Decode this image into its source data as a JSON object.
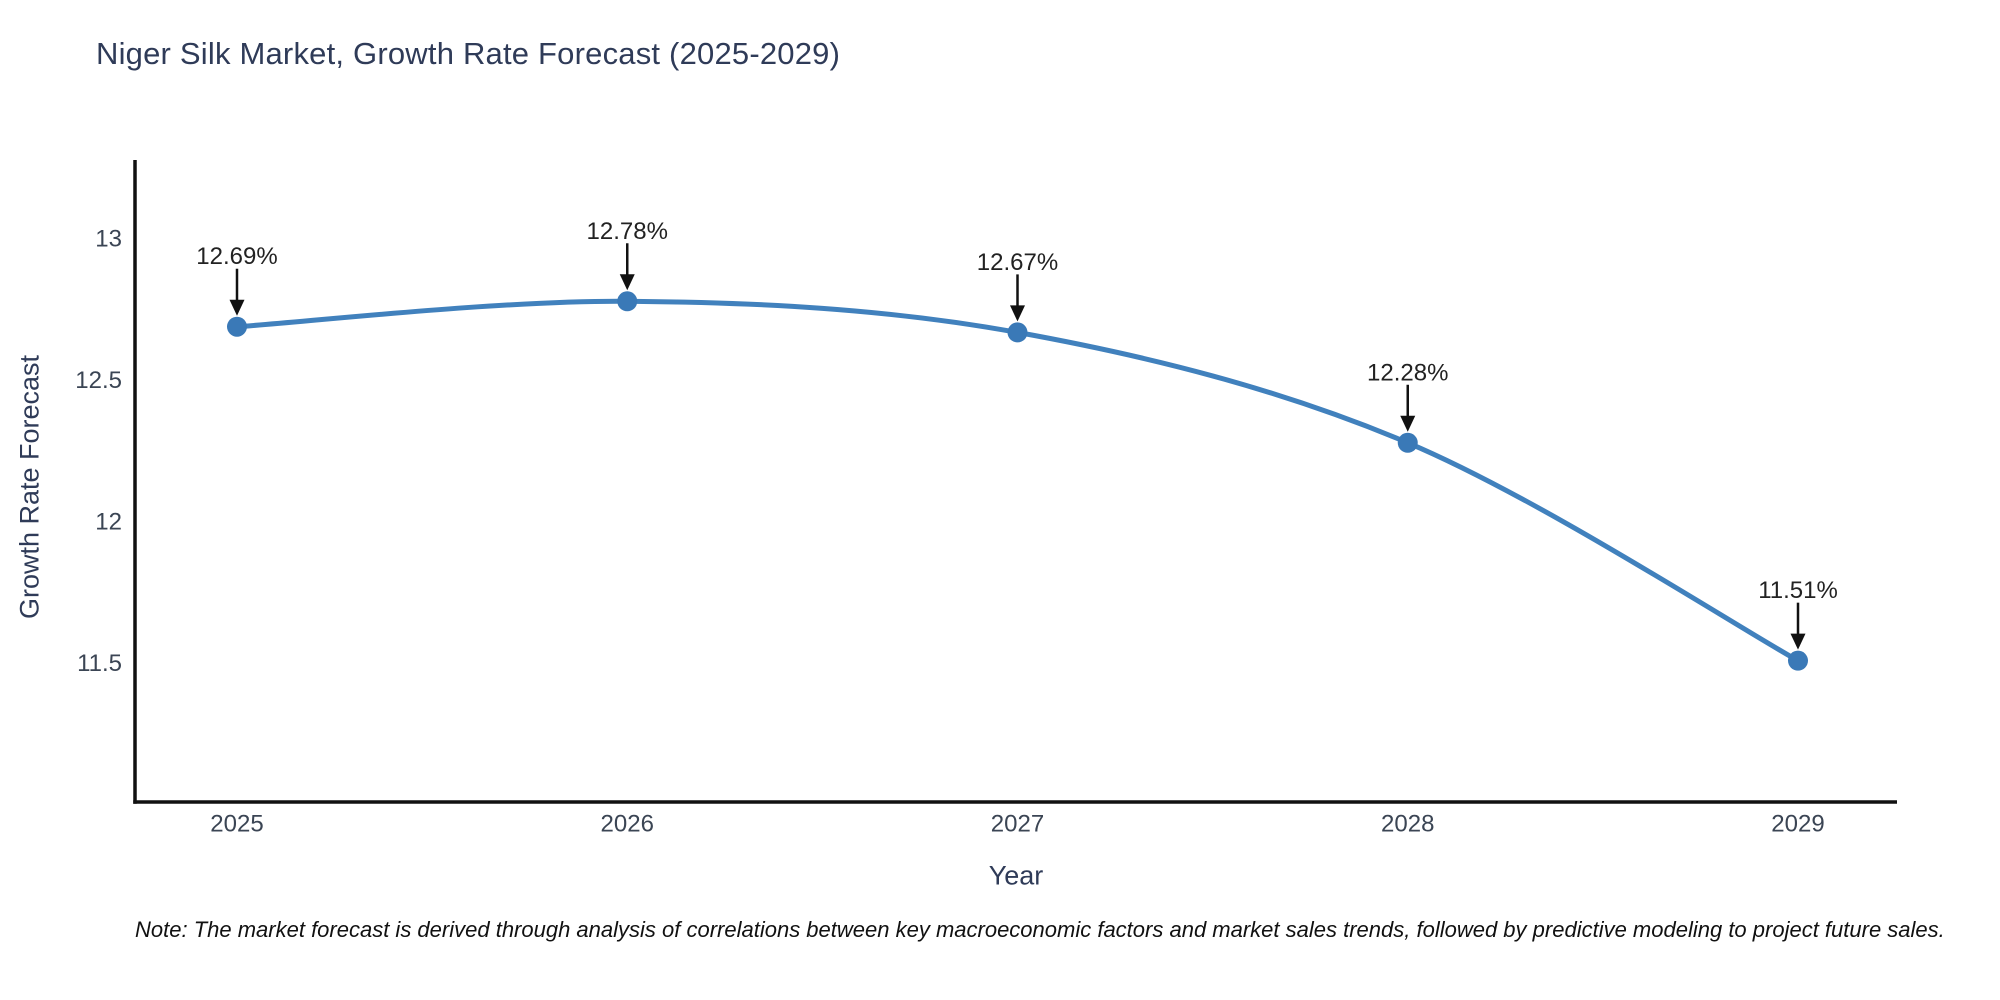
{
  "chart_data": {
    "type": "line",
    "title": "Niger Silk Market, Growth Rate Forecast (2025-2029)",
    "xlabel": "Year",
    "ylabel": "Growth Rate Forecast",
    "x": [
      2025,
      2026,
      2027,
      2028,
      2029
    ],
    "xtick_labels": [
      "2025",
      "2026",
      "2027",
      "2028",
      "2029"
    ],
    "series": [
      {
        "name": "Growth Rate Forecast",
        "values": [
          12.69,
          12.78,
          12.67,
          12.28,
          11.51
        ]
      }
    ],
    "point_labels": [
      "12.69%",
      "12.78%",
      "12.67%",
      "12.28%",
      "11.51%"
    ],
    "yticks": [
      13,
      12.5,
      12,
      11.5
    ],
    "ytick_labels": [
      "13",
      "12.5",
      "12",
      "11.5"
    ],
    "ylim": [
      11.0,
      13.28
    ],
    "grid": false,
    "legend": "none",
    "line_shape": "spline",
    "note": "Note: The market forecast is derived through analysis of correlations between key macroeconomic factors and market sales trends, followed by predictive modeling to project future sales.",
    "colors": {
      "line": "#4181bd",
      "marker": "#3a79b7",
      "axis": "#111111",
      "arrow": "#111111",
      "title_text": "#2f3b58",
      "tick_text": "#3b4554",
      "annotation_text": "#222222",
      "background": "#ffffff"
    }
  }
}
